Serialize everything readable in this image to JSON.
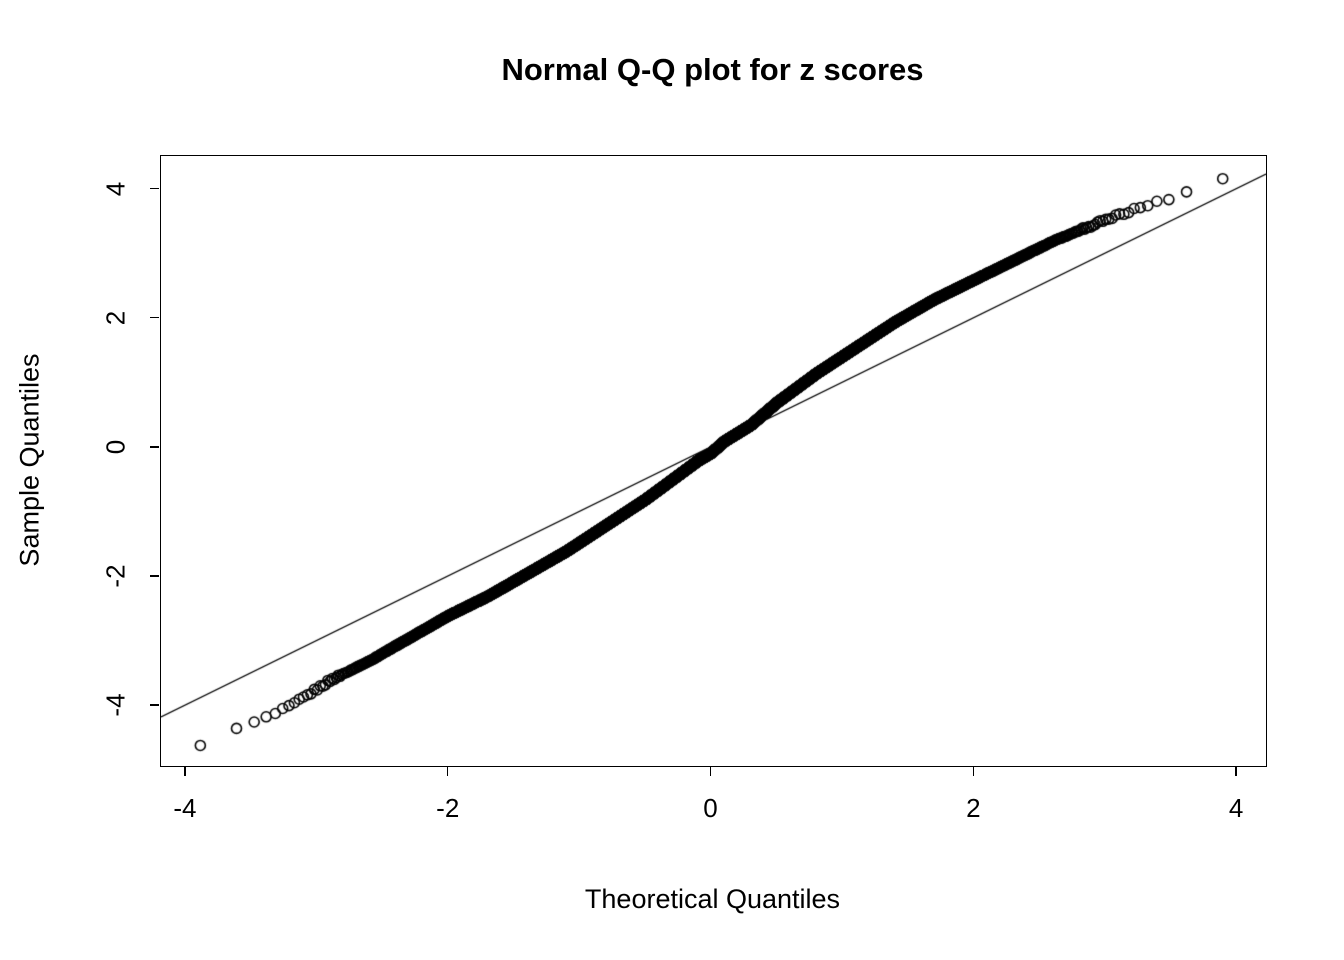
{
  "page": {
    "background": "#ffffff"
  },
  "chart_data": {
    "type": "scatter",
    "subtype": "normal-qq-plot",
    "title": "Normal Q-Q plot for z scores",
    "xlabel": "Theoretical Quantiles",
    "ylabel": "Sample Quantiles",
    "xlim": [
      -4.19,
      4.22
    ],
    "ylim": [
      -4.93,
      4.52
    ],
    "x_ticks": [
      -4,
      -2,
      0,
      2,
      4
    ],
    "y_ticks": [
      -4,
      -2,
      0,
      2,
      4
    ],
    "grid": false,
    "legend": null,
    "marker": "open-circle",
    "marker_radius_px": 5,
    "point_color": "#000000",
    "box_color": "#000000",
    "n_points": 10000,
    "reference_line": {
      "slope": 1.0,
      "intercept": 0.02,
      "color": "#000000"
    },
    "qq_curve": [
      [
        -3.9,
        -4.6
      ],
      [
        -3.6,
        -4.35
      ],
      [
        -3.35,
        -4.15
      ],
      [
        -3.2,
        -4.0
      ],
      [
        -3.05,
        -3.8
      ],
      [
        -2.9,
        -3.6
      ],
      [
        -2.6,
        -3.3
      ],
      [
        -2.3,
        -2.95
      ],
      [
        -2.0,
        -2.6
      ],
      [
        -1.7,
        -2.3
      ],
      [
        -1.4,
        -1.95
      ],
      [
        -1.1,
        -1.6
      ],
      [
        -0.8,
        -1.2
      ],
      [
        -0.5,
        -0.8
      ],
      [
        -0.3,
        -0.5
      ],
      [
        -0.1,
        -0.2
      ],
      [
        0.0,
        -0.08
      ],
      [
        0.1,
        0.1
      ],
      [
        0.3,
        0.35
      ],
      [
        0.5,
        0.7
      ],
      [
        0.8,
        1.15
      ],
      [
        1.1,
        1.55
      ],
      [
        1.4,
        1.95
      ],
      [
        1.7,
        2.3
      ],
      [
        2.0,
        2.6
      ],
      [
        2.3,
        2.9
      ],
      [
        2.6,
        3.2
      ],
      [
        2.9,
        3.45
      ],
      [
        3.1,
        3.6
      ],
      [
        3.3,
        3.75
      ],
      [
        3.5,
        3.85
      ],
      [
        3.7,
        4.05
      ],
      [
        3.9,
        4.2
      ]
    ]
  }
}
